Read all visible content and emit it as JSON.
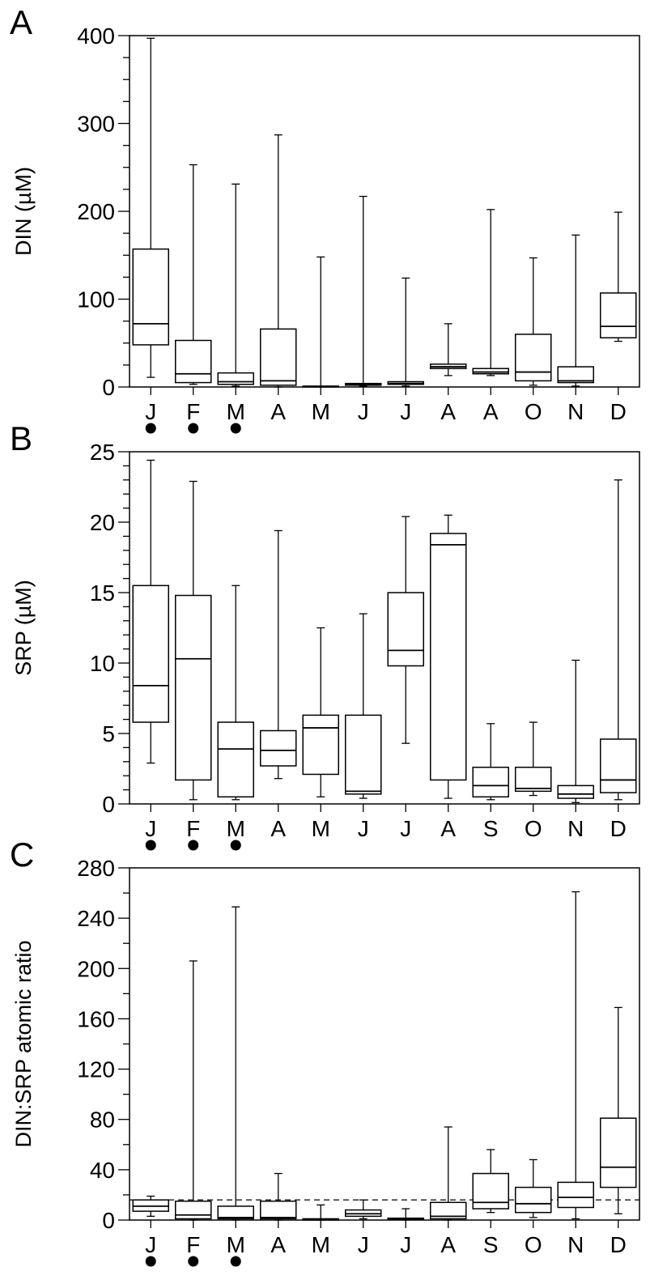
{
  "chart_data": [
    {
      "type": "box",
      "panel_label": "A",
      "ylabel": "DIN (µM)",
      "xlabel": "",
      "ylim": [
        0,
        400
      ],
      "yticks": [
        0,
        100,
        200,
        300,
        400
      ],
      "y_minor_step": 25,
      "categories": [
        "J",
        "F",
        "M",
        "A",
        "M",
        "J",
        "J",
        "A",
        "A",
        "O",
        "N",
        "D"
      ],
      "marked_categories": [
        0,
        1,
        2
      ],
      "marker": "filled-circle",
      "boxes": [
        {
          "min": 11,
          "q1": 48,
          "median": 72,
          "q3": 157,
          "max": 397
        },
        {
          "min": 3,
          "q1": 5,
          "median": 15,
          "q3": 53,
          "max": 253
        },
        {
          "min": 1,
          "q1": 3,
          "median": 6,
          "q3": 16,
          "max": 231
        },
        {
          "min": 0,
          "q1": 2,
          "median": 7,
          "q3": 66,
          "max": 287
        },
        {
          "min": 0,
          "q1": 0,
          "median": 0.5,
          "q3": 1,
          "max": 148
        },
        {
          "min": 1,
          "q1": 2,
          "median": 3,
          "q3": 4,
          "max": 217
        },
        {
          "min": 1,
          "q1": 3,
          "median": 4,
          "q3": 6,
          "max": 124
        },
        {
          "min": 13,
          "q1": 21,
          "median": 23,
          "q3": 26,
          "max": 72
        },
        {
          "min": 13,
          "q1": 15,
          "median": 17,
          "q3": 21,
          "max": 202
        },
        {
          "min": 2,
          "q1": 7,
          "median": 17,
          "q3": 60,
          "max": 147
        },
        {
          "min": 1,
          "q1": 5,
          "median": 7,
          "q3": 23,
          "max": 173
        },
        {
          "min": 52,
          "q1": 56,
          "median": 69,
          "q3": 107,
          "max": 199
        }
      ]
    },
    {
      "type": "box",
      "panel_label": "B",
      "ylabel": "SRP (µM)",
      "xlabel": "",
      "ylim": [
        0,
        25
      ],
      "yticks": [
        0,
        5,
        10,
        15,
        20,
        25
      ],
      "y_minor_step": 1,
      "categories": [
        "J",
        "F",
        "M",
        "A",
        "M",
        "J",
        "J",
        "A",
        "S",
        "O",
        "N",
        "D"
      ],
      "marked_categories": [
        0,
        1,
        2
      ],
      "marker": "filled-circle",
      "boxes": [
        {
          "min": 2.9,
          "q1": 5.8,
          "median": 8.4,
          "q3": 15.5,
          "max": 24.4
        },
        {
          "min": 0.3,
          "q1": 1.7,
          "median": 10.3,
          "q3": 14.8,
          "max": 22.9
        },
        {
          "min": 0.3,
          "q1": 0.5,
          "median": 3.9,
          "q3": 5.8,
          "max": 15.5
        },
        {
          "min": 1.8,
          "q1": 2.7,
          "median": 3.8,
          "q3": 5.2,
          "max": 19.4
        },
        {
          "min": 0.5,
          "q1": 2.1,
          "median": 5.4,
          "q3": 6.3,
          "max": 12.5
        },
        {
          "min": 0.4,
          "q1": 0.7,
          "median": 0.9,
          "q3": 6.3,
          "max": 13.5
        },
        {
          "min": 4.3,
          "q1": 9.8,
          "median": 10.9,
          "q3": 15.0,
          "max": 20.4
        },
        {
          "min": 0.4,
          "q1": 1.7,
          "median": 18.4,
          "q3": 19.2,
          "max": 20.5
        },
        {
          "min": 0.3,
          "q1": 0.5,
          "median": 1.3,
          "q3": 2.6,
          "max": 5.7
        },
        {
          "min": 0.6,
          "q1": 0.9,
          "median": 1.1,
          "q3": 2.6,
          "max": 5.8
        },
        {
          "min": 0.1,
          "q1": 0.4,
          "median": 0.7,
          "q3": 1.3,
          "max": 10.2
        },
        {
          "min": 0.3,
          "q1": 0.8,
          "median": 1.7,
          "q3": 4.6,
          "max": 23.0
        }
      ]
    },
    {
      "type": "box",
      "panel_label": "C",
      "ylabel": "DIN:SRP atomic ratio",
      "xlabel": "",
      "ylim": [
        0,
        280
      ],
      "yticks": [
        0,
        40,
        80,
        120,
        160,
        200,
        240,
        280
      ],
      "y_minor_step": 20,
      "reference_line": 16,
      "categories": [
        "J",
        "F",
        "M",
        "A",
        "M",
        "J",
        "J",
        "A",
        "S",
        "O",
        "N",
        "D"
      ],
      "marked_categories": [
        0,
        1,
        2
      ],
      "marker": "filled-circle",
      "boxes": [
        {
          "min": 3,
          "q1": 7,
          "median": 11,
          "q3": 16,
          "max": 19
        },
        {
          "min": 0,
          "q1": 1,
          "median": 4,
          "q3": 15,
          "max": 206
        },
        {
          "min": 0,
          "q1": 1,
          "median": 2,
          "q3": 11,
          "max": 249
        },
        {
          "min": 0,
          "q1": 1,
          "median": 2,
          "q3": 15,
          "max": 37
        },
        {
          "min": 0,
          "q1": 0,
          "median": 0.5,
          "q3": 1,
          "max": 12
        },
        {
          "min": 1,
          "q1": 3,
          "median": 5,
          "q3": 8,
          "max": 16
        },
        {
          "min": 0,
          "q1": 0.5,
          "median": 1,
          "q3": 1.5,
          "max": 9
        },
        {
          "min": 0,
          "q1": 1,
          "median": 3,
          "q3": 14,
          "max": 74
        },
        {
          "min": 6,
          "q1": 9,
          "median": 14,
          "q3": 37,
          "max": 56
        },
        {
          "min": 2,
          "q1": 6,
          "median": 13,
          "q3": 26,
          "max": 48
        },
        {
          "min": 1,
          "q1": 10,
          "median": 18,
          "q3": 30,
          "max": 261
        },
        {
          "min": 5,
          "q1": 26,
          "median": 42,
          "q3": 81,
          "max": 169
        }
      ]
    }
  ]
}
